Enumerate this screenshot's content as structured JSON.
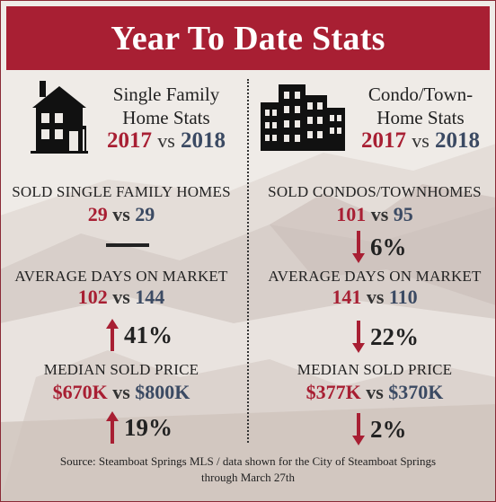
{
  "header": {
    "title": "Year To Date Stats"
  },
  "left": {
    "title_line1": "Single Family",
    "title_line2": "Home Stats",
    "year_a": "2017",
    "vs": "vs",
    "year_b": "2018",
    "stats": [
      {
        "label": "SOLD SINGLE FAMILY HOMES",
        "a": "29",
        "b": "29",
        "direction": "none",
        "change": ""
      },
      {
        "label": "AVERAGE DAYS ON MARKET",
        "a": "102",
        "b": "144",
        "direction": "up",
        "change": "41%"
      },
      {
        "label": "MEDIAN SOLD PRICE",
        "a": "$670K",
        "b": "$800K",
        "direction": "up",
        "change": "19%"
      }
    ]
  },
  "right": {
    "title_line1": "Condo/Town-",
    "title_line2": "Home Stats",
    "year_a": "2017",
    "vs": "vs",
    "year_b": "2018",
    "stats": [
      {
        "label": "SOLD CONDOS/TOWNHOMES",
        "a": "101",
        "b": "95",
        "direction": "down",
        "change": "6%"
      },
      {
        "label": "AVERAGE DAYS ON MARKET",
        "a": "141",
        "b": "110",
        "direction": "down",
        "change": "22%"
      },
      {
        "label": "MEDIAN SOLD PRICE",
        "a": "$377K",
        "b": "$370K",
        "direction": "down",
        "change": "2%"
      }
    ]
  },
  "source": {
    "line1": "Source: Steamboat Springs MLS / data shown for the City of Steamboat Springs",
    "line2": "through March 27th"
  },
  "colors": {
    "accent": "#a81f33",
    "blue": "#3b4a63",
    "header_bg": "#a81f33"
  },
  "icons": [
    "house-icon",
    "buildings-icon",
    "arrow-up-icon",
    "arrow-down-icon"
  ]
}
